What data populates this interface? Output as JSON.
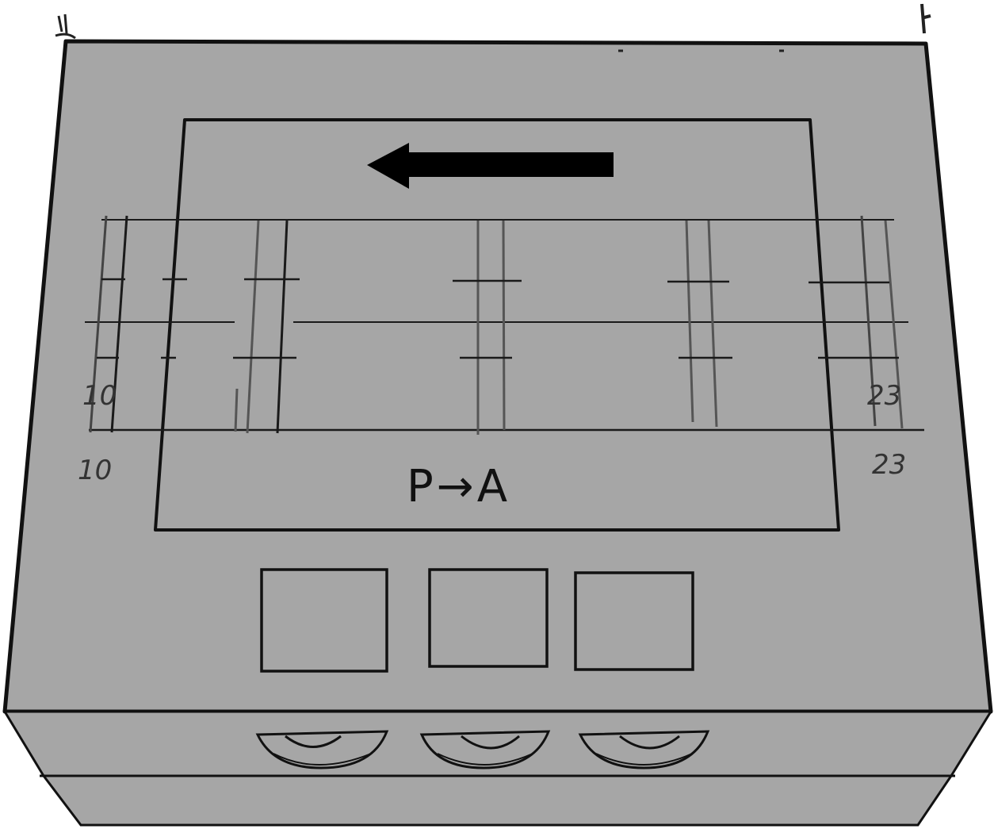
{
  "colors": {
    "device_body": "#a6a6a6",
    "outline": "#111111",
    "arrow": "#000000"
  },
  "screen": {
    "arrow_direction": "left",
    "mode_text": "P→A",
    "range_start_label": "10",
    "range_end_label": "23",
    "range_start_label_outer": "10",
    "range_end_label_outer": "23"
  },
  "icons": {
    "direction_arrow": "arrow-left-icon",
    "outlets": [
      "outlet-icon",
      "outlet-icon",
      "outlet-icon"
    ]
  }
}
